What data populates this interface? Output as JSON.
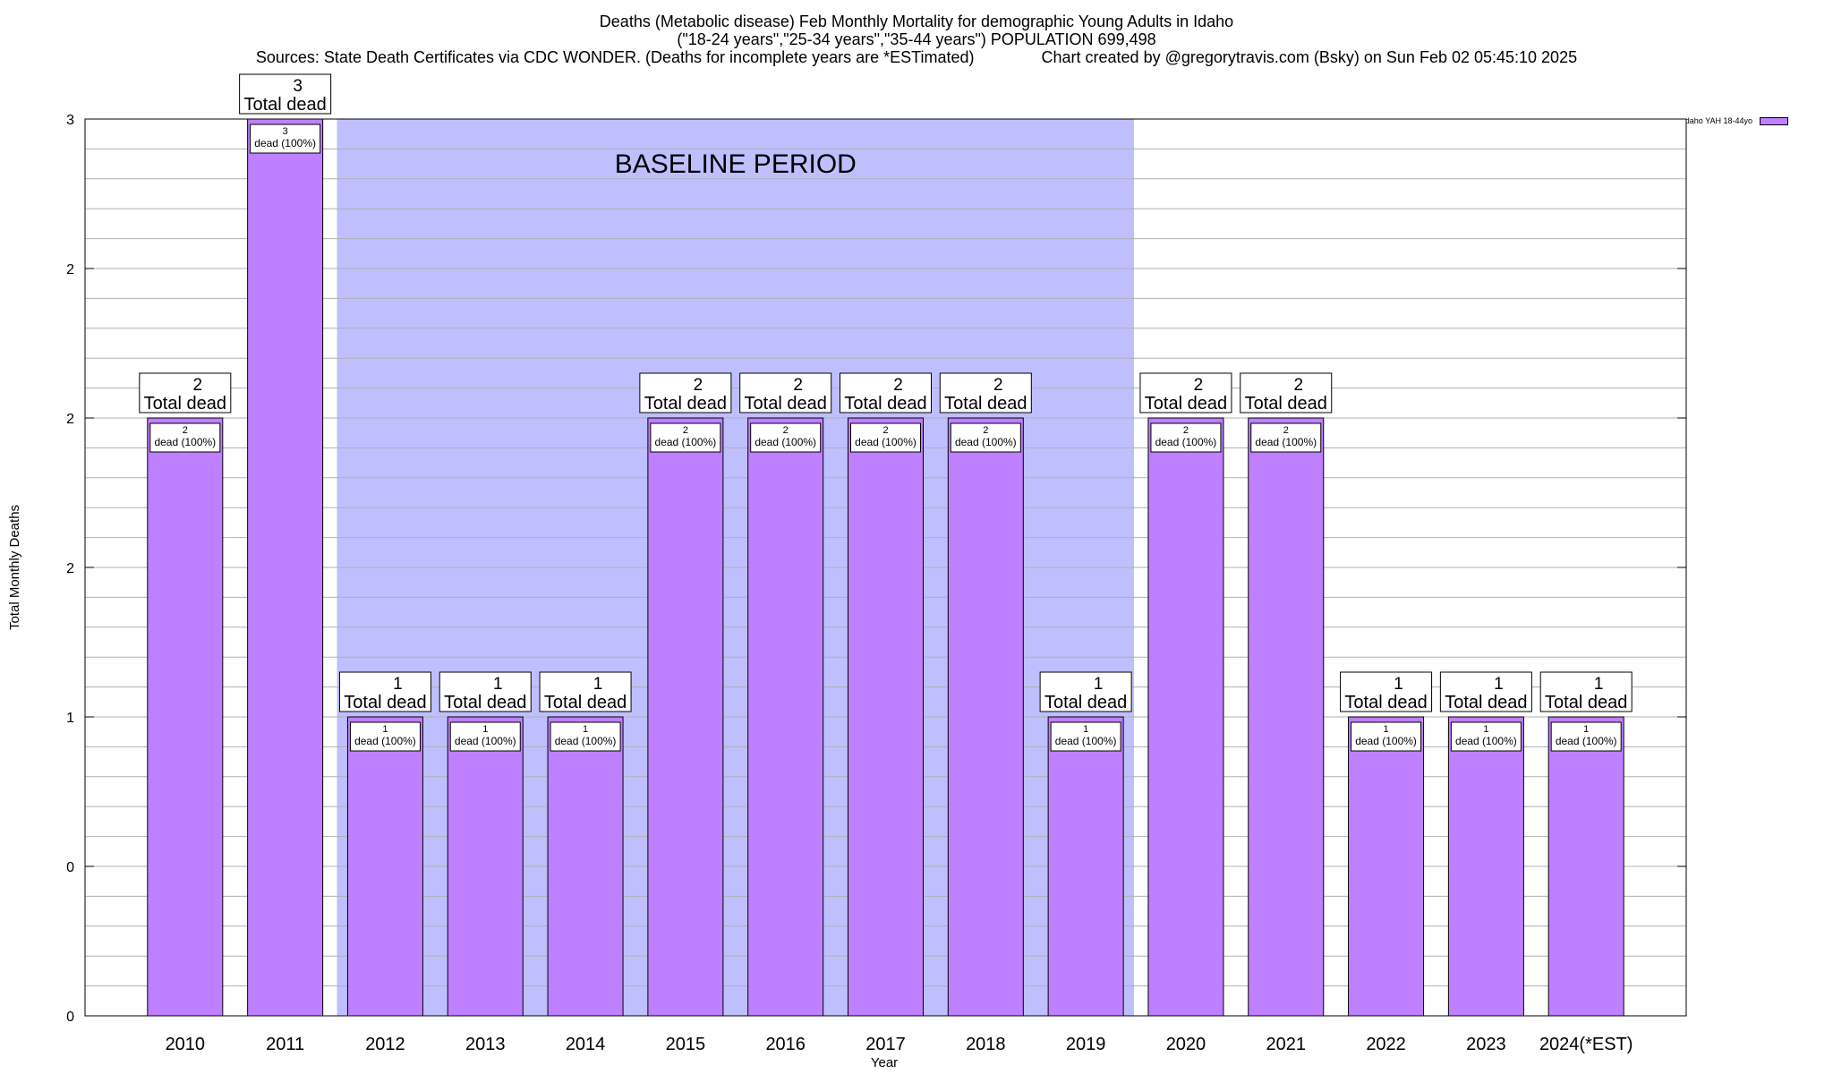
{
  "chart_data": {
    "type": "bar",
    "title_lines": [
      "Deaths (Metabolic disease) Feb Monthly Mortality for demographic Young Adults in Idaho",
      "(\"18-24 years\",\"25-34 years\",\"35-44 years\") POPULATION 699,498",
      "Sources: State Death Certificates via CDC WONDER. (Deaths for incomplete years are *ESTimated)               Chart created by @gregorytravis.com (Bsky) on Sun Feb 02 05:45:10 2025"
    ],
    "xlabel": "Year",
    "ylabel": "Total Monthly Deaths",
    "categories": [
      "2010",
      "2011",
      "2012",
      "2013",
      "2014",
      "2015",
      "2016",
      "2017",
      "2018",
      "2019",
      "2020",
      "2021",
      "2022",
      "2023",
      "2024(*EST)"
    ],
    "series": [
      {
        "name": "daho YAH 18-44yo",
        "color": "#bf80ff",
        "values": [
          2,
          3,
          1,
          1,
          1,
          2,
          2,
          2,
          2,
          1,
          2,
          2,
          1,
          1,
          1
        ]
      }
    ],
    "total_labels": [
      "2",
      "3",
      "1",
      "1",
      "1",
      "2",
      "2",
      "2",
      "2",
      "1",
      "2",
      "2",
      "1",
      "1",
      "1"
    ],
    "total_suffix": "Total dead",
    "inner_labels": [
      "2",
      "3",
      "1",
      "1",
      "1",
      "2",
      "2",
      "2",
      "2",
      "1",
      "2",
      "2",
      "1",
      "1",
      "1"
    ],
    "inner_suffix": "dead (100%)",
    "ylim": [
      0,
      3
    ],
    "ytick_labels": [
      "0",
      "0",
      "1",
      "2",
      "2",
      "2",
      "3"
    ],
    "baseline": {
      "label": "BASELINE PERIOD",
      "start_category": "2012",
      "end_category": "2019",
      "color": "#bfbfff"
    },
    "grid": true,
    "legend_position": "top-right"
  }
}
